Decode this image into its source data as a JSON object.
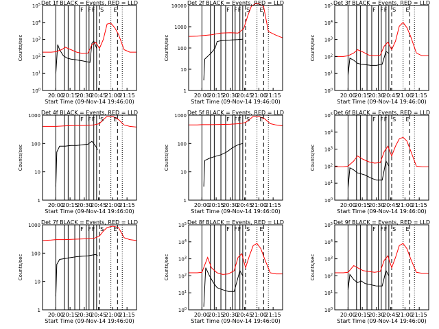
{
  "figure": {
    "xlabel": "Start Time (09-Nov-14 19:46:00)",
    "ylabel": "Counts/sec",
    "x_tick_labels": [
      "20:00",
      "20:15",
      "20:30",
      "20:45",
      "21:00",
      "21:15"
    ],
    "event_letter_labels": [
      "F",
      "F",
      "F",
      "S",
      "E"
    ],
    "series_colors": {
      "Events": "#000000",
      "LLD": "#ff0000"
    }
  },
  "chart_data": [
    {
      "type": "line",
      "title": "Det 1f  BLACK = Events, RED = LLD",
      "xlabel": "Start Time (09-Nov-14 19:46:00)",
      "ylabel": "Counts/sec",
      "xlim": [
        "19:46",
        "21:25"
      ],
      "ylim": [
        1,
        100000
      ],
      "y_scale": "log",
      "y_tick_labels": [
        "10^0",
        "10^1",
        "10^2",
        "10^3",
        "10^4",
        "10^5"
      ],
      "series": [
        {
          "name": "Events",
          "color": "#000000",
          "x": [
            "20:00",
            "20:02",
            "20:04",
            "20:08",
            "20:12",
            "20:16",
            "20:20",
            "20:24",
            "20:28",
            "20:32",
            "20:36",
            "20:38",
            "20:40",
            "20:43"
          ],
          "y": [
            10,
            500,
            250,
            110,
            80,
            70,
            65,
            60,
            55,
            50,
            45,
            600,
            800,
            300
          ]
        },
        {
          "name": "LLD",
          "color": "#ff0000",
          "x": [
            "19:46",
            "19:55",
            "20:00",
            "20:06",
            "20:10",
            "20:16",
            "20:22",
            "20:28",
            "20:34",
            "20:38",
            "20:42",
            "20:46",
            "20:50",
            "20:54",
            "20:58",
            "21:02",
            "21:06",
            "21:12",
            "21:18",
            "21:25"
          ],
          "y": [
            180,
            180,
            190,
            250,
            350,
            250,
            180,
            150,
            160,
            500,
            700,
            300,
            1000,
            8000,
            9000,
            5000,
            2000,
            250,
            180,
            180
          ]
        }
      ]
    },
    {
      "type": "line",
      "title": "Det 2f  BLACK = Events, RED = LLD",
      "xlabel": "Start Time (09-Nov-14 19:46:00)",
      "ylabel": "Counts/sec",
      "xlim": [
        "19:46",
        "21:25"
      ],
      "ylim": [
        1,
        10000
      ],
      "y_scale": "log",
      "y_tick_labels": [
        "1",
        "10",
        "100",
        "1000",
        "10000"
      ],
      "series": [
        {
          "name": "Events",
          "color": "#000000",
          "x": [
            "20:02",
            "20:03",
            "20:06",
            "20:10",
            "20:14",
            "20:16",
            "20:20",
            "20:26",
            "20:32",
            "20:38",
            "20:43"
          ],
          "y": [
            3,
            30,
            40,
            60,
            100,
            200,
            220,
            230,
            240,
            250,
            260
          ]
        },
        {
          "name": "LLD",
          "color": "#ff0000",
          "x": [
            "19:46",
            "19:55",
            "20:00",
            "20:10",
            "20:20",
            "20:30",
            "20:38",
            "20:44",
            "20:48",
            "20:52",
            "20:56",
            "21:00",
            "21:05",
            "21:10",
            "21:18",
            "21:25"
          ],
          "y": [
            350,
            360,
            380,
            420,
            500,
            520,
            500,
            800,
            3000,
            9000,
            12000,
            12000,
            9000,
            600,
            400,
            300
          ]
        }
      ]
    },
    {
      "type": "line",
      "title": "Det 3f  BLACK = Events, RED = LLD",
      "xlabel": "Start Time (09-Nov-14 19:46:00)",
      "ylabel": "Counts/sec",
      "xlim": [
        "19:46",
        "21:25"
      ],
      "ylim": [
        1,
        100000
      ],
      "y_scale": "log",
      "y_tick_labels": [
        "10^0",
        "10^1",
        "10^2",
        "10^3",
        "10^4",
        "10^5"
      ],
      "series": [
        {
          "name": "Events",
          "color": "#000000",
          "x": [
            "20:00",
            "20:02",
            "20:06",
            "20:10",
            "20:14",
            "20:18",
            "20:24",
            "20:30",
            "20:36",
            "20:40",
            "20:43"
          ],
          "y": [
            8,
            80,
            60,
            40,
            35,
            33,
            30,
            30,
            35,
            200,
            150
          ]
        },
        {
          "name": "LLD",
          "color": "#ff0000",
          "x": [
            "19:46",
            "19:55",
            "20:00",
            "20:06",
            "20:10",
            "20:16",
            "20:22",
            "20:28",
            "20:34",
            "20:38",
            "20:42",
            "20:46",
            "20:50",
            "20:54",
            "20:58",
            "21:02",
            "21:06",
            "21:12",
            "21:18",
            "21:25"
          ],
          "y": [
            100,
            100,
            110,
            160,
            250,
            180,
            120,
            110,
            120,
            400,
            700,
            250,
            800,
            6000,
            10000,
            5000,
            1500,
            160,
            110,
            110
          ]
        }
      ]
    },
    {
      "type": "line",
      "title": "Det 4f  BLACK = Events, RED = LLD",
      "xlabel": "Start Time (09-Nov-14 19:46:00)",
      "ylabel": "Counts/sec",
      "xlim": [
        "19:46",
        "21:25"
      ],
      "ylim": [
        1,
        1000
      ],
      "y_scale": "log",
      "y_tick_labels": [
        "1",
        "10",
        "100",
        "1000"
      ],
      "series": [
        {
          "name": "Events",
          "color": "#000000",
          "x": [
            "20:00",
            "20:01",
            "20:04",
            "20:10",
            "20:16",
            "20:22",
            "20:28",
            "20:34",
            "20:38",
            "20:42",
            "20:44"
          ],
          "y": [
            3,
            50,
            80,
            80,
            85,
            85,
            90,
            95,
            120,
            80,
            60
          ]
        },
        {
          "name": "LLD",
          "color": "#ff0000",
          "x": [
            "19:46",
            "19:55",
            "20:00",
            "20:10",
            "20:20",
            "20:30",
            "20:40",
            "20:46",
            "20:50",
            "20:54",
            "21:00",
            "21:06",
            "21:12",
            "21:18",
            "21:25"
          ],
          "y": [
            400,
            400,
            400,
            420,
            430,
            430,
            450,
            500,
            700,
            900,
            900,
            700,
            450,
            400,
            380
          ]
        }
      ]
    },
    {
      "type": "line",
      "title": "Det 5f  BLACK = Events, RED = LLD",
      "xlabel": "Start Time (09-Nov-14 19:46:00)",
      "ylabel": "Counts/sec",
      "xlim": [
        "19:46",
        "21:25"
      ],
      "ylim": [
        1,
        1000
      ],
      "y_scale": "log",
      "y_tick_labels": [
        "1",
        "10",
        "100",
        "1000"
      ],
      "series": [
        {
          "name": "Events",
          "color": "#000000",
          "x": [
            "20:02",
            "20:03",
            "20:08",
            "20:14",
            "20:20",
            "20:26",
            "20:32",
            "20:38",
            "20:43"
          ],
          "y": [
            3,
            25,
            30,
            35,
            40,
            50,
            70,
            90,
            100
          ]
        },
        {
          "name": "LLD",
          "color": "#ff0000",
          "x": [
            "19:46",
            "19:55",
            "20:00",
            "20:10",
            "20:20",
            "20:30",
            "20:40",
            "20:46",
            "20:50",
            "20:54",
            "21:00",
            "21:06",
            "21:12",
            "21:18",
            "21:25"
          ],
          "y": [
            450,
            450,
            460,
            460,
            470,
            480,
            500,
            550,
            700,
            900,
            900,
            750,
            500,
            450,
            420
          ]
        }
      ]
    },
    {
      "type": "line",
      "title": "Det 6f  BLACK = Events, RED = LLD",
      "xlabel": "Start Time (09-Nov-14 19:46:00)",
      "ylabel": "Counts/sec",
      "xlim": [
        "19:46",
        "21:25"
      ],
      "ylim": [
        1,
        100000
      ],
      "y_scale": "log",
      "y_tick_labels": [
        "10^0",
        "10^1",
        "10^2",
        "10^3",
        "10^4",
        "10^5"
      ],
      "series": [
        {
          "name": "Events",
          "color": "#000000",
          "x": [
            "20:00",
            "20:02",
            "20:06",
            "20:10",
            "20:14",
            "20:18",
            "20:24",
            "20:30",
            "20:36",
            "20:40",
            "20:43"
          ],
          "y": [
            5,
            80,
            60,
            40,
            35,
            30,
            20,
            15,
            15,
            200,
            100
          ]
        },
        {
          "name": "LLD",
          "color": "#ff0000",
          "x": [
            "19:46",
            "19:55",
            "20:00",
            "20:06",
            "20:10",
            "20:16",
            "20:22",
            "20:28",
            "20:34",
            "20:38",
            "20:42",
            "20:46",
            "20:50",
            "20:54",
            "20:58",
            "21:02",
            "21:06",
            "21:12",
            "21:18",
            "21:25"
          ],
          "y": [
            90,
            90,
            100,
            200,
            400,
            250,
            180,
            150,
            160,
            700,
            1500,
            400,
            1500,
            4000,
            5000,
            3000,
            800,
            100,
            90,
            90
          ]
        }
      ]
    },
    {
      "type": "line",
      "title": "Det 7f  BLACK = Events, RED = LLD",
      "xlabel": "Start Time (09-Nov-14 19:46:00)",
      "ylabel": "Counts/sec",
      "xlim": [
        "19:46",
        "21:25"
      ],
      "ylim": [
        1,
        1000
      ],
      "y_scale": "log",
      "y_tick_labels": [
        "1",
        "10",
        "100",
        "1000"
      ],
      "series": [
        {
          "name": "Events",
          "color": "#000000",
          "x": [
            "20:00",
            "20:01",
            "20:04",
            "20:10",
            "20:16",
            "20:22",
            "20:28",
            "20:34",
            "20:38",
            "20:42",
            "20:44"
          ],
          "y": [
            3,
            40,
            60,
            65,
            70,
            75,
            78,
            80,
            85,
            90,
            80
          ]
        },
        {
          "name": "LLD",
          "color": "#ff0000",
          "x": [
            "19:46",
            "19:55",
            "20:00",
            "20:10",
            "20:20",
            "20:30",
            "20:40",
            "20:46",
            "20:50",
            "20:54",
            "21:00",
            "21:06",
            "21:12",
            "21:18",
            "21:25"
          ],
          "y": [
            280,
            290,
            300,
            300,
            310,
            320,
            330,
            400,
            600,
            800,
            900,
            800,
            350,
            300,
            280
          ]
        }
      ]
    },
    {
      "type": "line",
      "title": "Det 8f  BLACK = Events, RED = LLD",
      "xlabel": "Start Time (09-Nov-14 19:46:00)",
      "ylabel": "Counts/sec",
      "xlim": [
        "19:46",
        "21:25"
      ],
      "ylim": [
        1,
        100000
      ],
      "y_scale": "log",
      "y_tick_labels": [
        "10^0",
        "10^1",
        "10^2",
        "10^3",
        "10^4",
        "10^5"
      ],
      "series": [
        {
          "name": "Events",
          "color": "#000000",
          "x": [
            "20:02",
            "20:04",
            "20:08",
            "20:12",
            "20:16",
            "20:22",
            "20:28",
            "20:34",
            "20:40",
            "20:43"
          ],
          "y": [
            1.5,
            300,
            100,
            40,
            20,
            15,
            12,
            12,
            200,
            100
          ]
        },
        {
          "name": "LLD",
          "color": "#ff0000",
          "x": [
            "19:46",
            "19:55",
            "20:00",
            "20:06",
            "20:10",
            "20:16",
            "20:22",
            "20:28",
            "20:34",
            "20:38",
            "20:42",
            "20:46",
            "20:50",
            "20:54",
            "20:58",
            "21:02",
            "21:06",
            "21:12",
            "21:18",
            "21:25"
          ],
          "y": [
            150,
            150,
            160,
            1200,
            300,
            150,
            120,
            130,
            200,
            1200,
            2000,
            300,
            1500,
            6000,
            8000,
            4000,
            1000,
            150,
            130,
            130
          ]
        }
      ]
    },
    {
      "type": "line",
      "title": "Det 9f  BLACK = Events, RED = LLD",
      "xlabel": "Start Time (09-Nov-14 19:46:00)",
      "ylabel": "Counts/sec",
      "xlim": [
        "19:46",
        "21:25"
      ],
      "ylim": [
        1,
        100000
      ],
      "y_scale": "log",
      "y_tick_labels": [
        "10^0",
        "10^1",
        "10^2",
        "10^3",
        "10^4",
        "10^5"
      ],
      "series": [
        {
          "name": "Events",
          "color": "#000000",
          "x": [
            "20:00",
            "20:02",
            "20:06",
            "20:10",
            "20:14",
            "20:18",
            "20:24",
            "20:30",
            "20:36",
            "20:40",
            "20:43"
          ],
          "y": [
            15,
            120,
            60,
            40,
            50,
            35,
            30,
            25,
            25,
            200,
            100
          ]
        },
        {
          "name": "LLD",
          "color": "#ff0000",
          "x": [
            "19:46",
            "19:55",
            "20:00",
            "20:06",
            "20:10",
            "20:16",
            "20:22",
            "20:28",
            "20:34",
            "20:38",
            "20:42",
            "20:46",
            "20:50",
            "20:54",
            "20:58",
            "21:02",
            "21:06",
            "21:12",
            "21:18",
            "21:25"
          ],
          "y": [
            150,
            150,
            160,
            400,
            300,
            200,
            180,
            160,
            180,
            800,
            1500,
            300,
            1200,
            6000,
            8000,
            4000,
            1000,
            160,
            140,
            140
          ]
        }
      ]
    }
  ]
}
